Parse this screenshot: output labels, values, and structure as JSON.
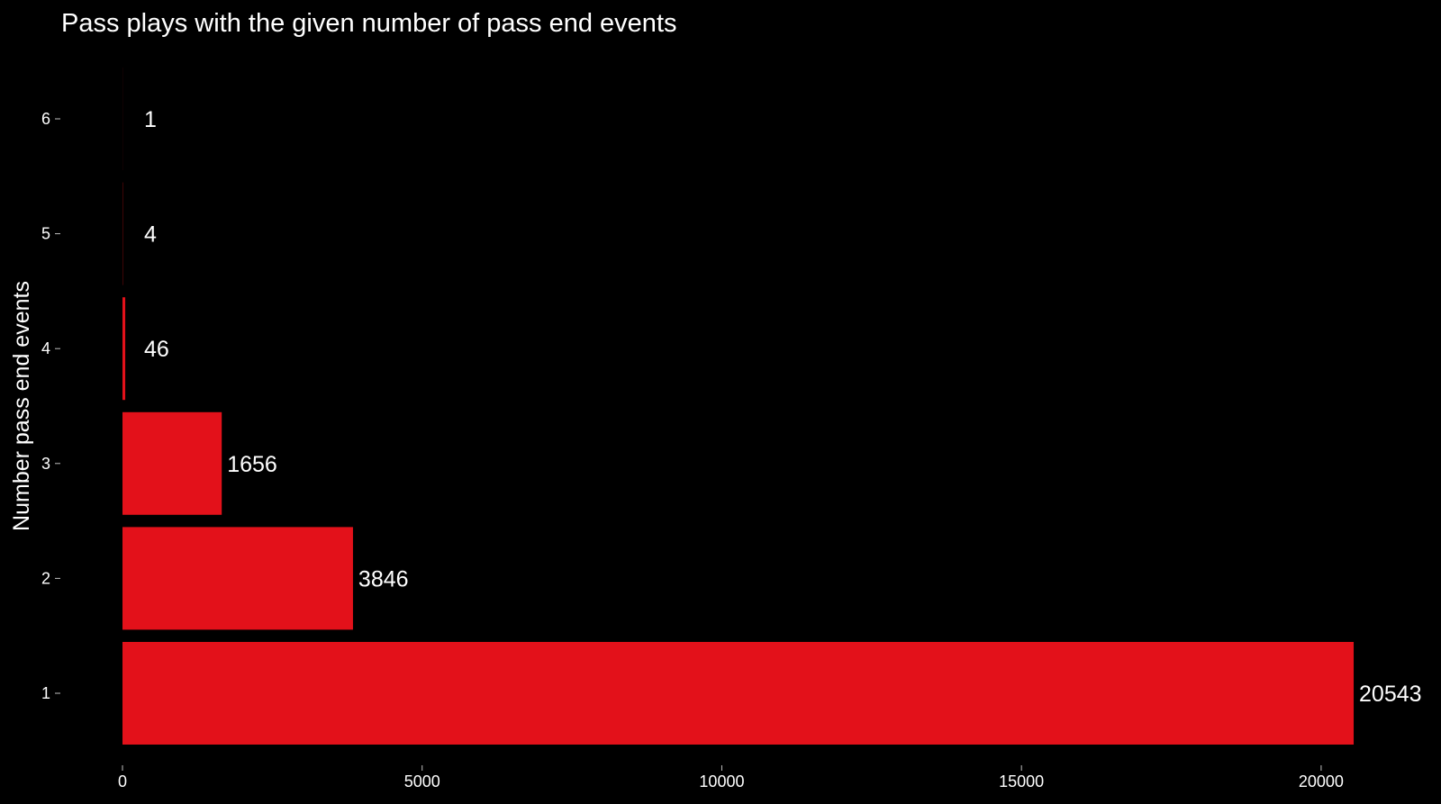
{
  "chart_data": {
    "type": "bar",
    "orientation": "horizontal",
    "title": "Pass plays with the given number of pass end events",
    "xlabel": "",
    "ylabel": "Number pass end events",
    "categories": [
      "1",
      "2",
      "3",
      "4",
      "5",
      "6"
    ],
    "values": [
      20543,
      3846,
      1656,
      46,
      4,
      1
    ],
    "data_labels": [
      "20543",
      "3846",
      "1656",
      "46",
      "4",
      "1"
    ],
    "xlim": [
      0,
      22000
    ],
    "xticks": [
      0,
      5000,
      10000,
      15000,
      20000
    ],
    "xtick_labels": [
      "0",
      "5000",
      "10000",
      "15000",
      "20000"
    ],
    "grid": false,
    "legend": "none",
    "colors": {
      "background": "#000000",
      "bar": "#e3111a",
      "text": "#ffffff",
      "ticks": "#bfbfbf"
    }
  }
}
